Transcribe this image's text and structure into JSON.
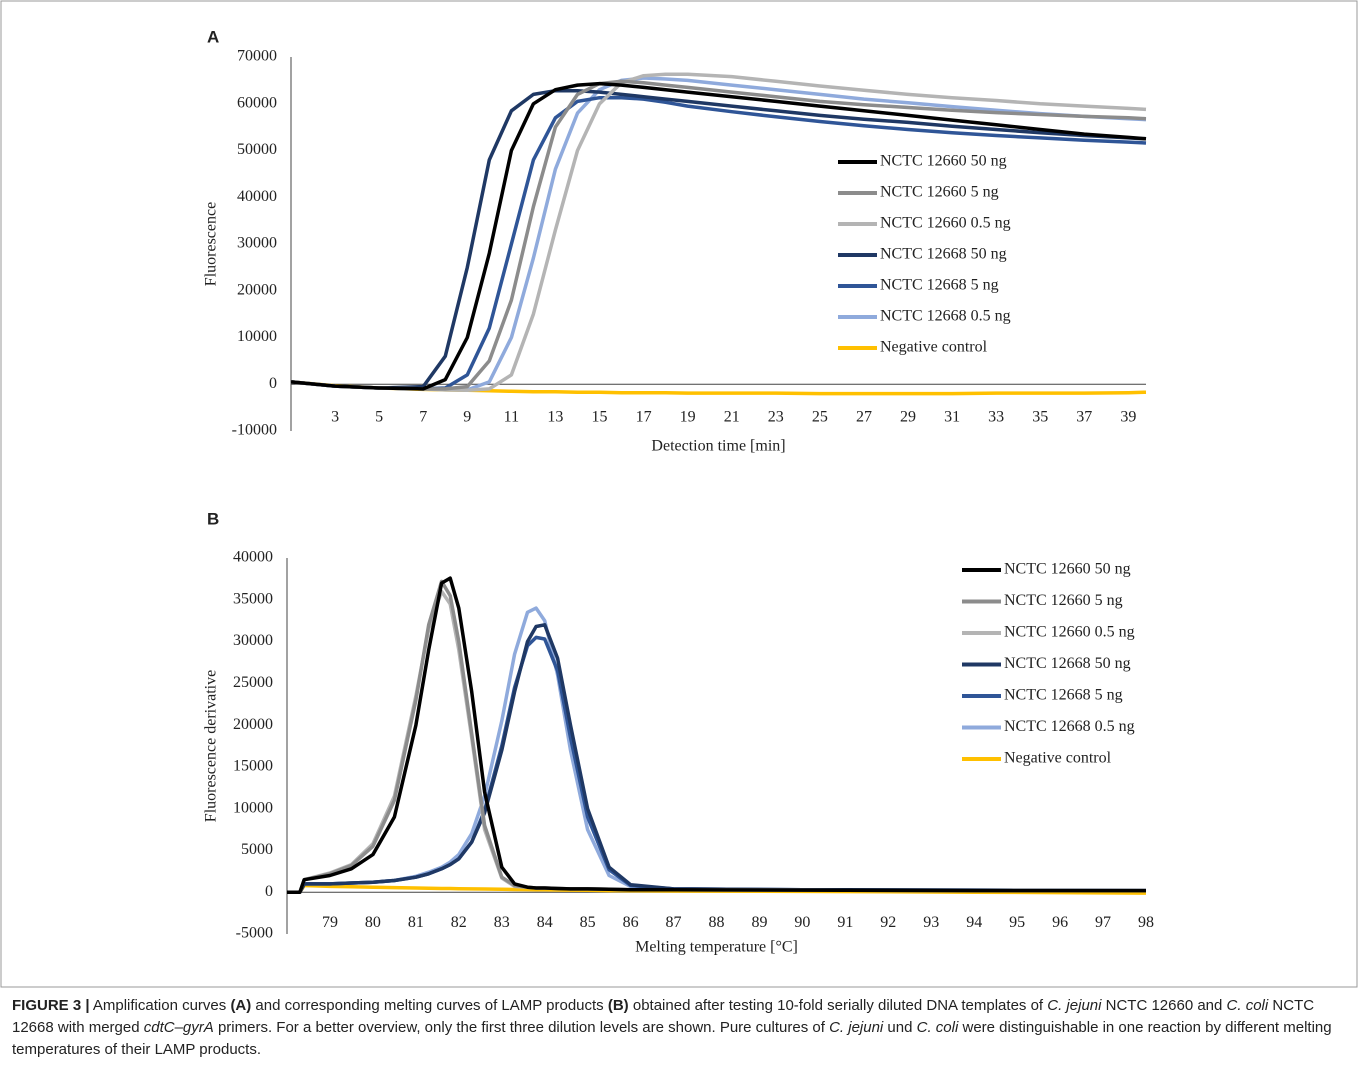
{
  "chart_data": [
    {
      "type": "line",
      "panel_label": "A",
      "x_label": "Detection time [min]",
      "y_label": "Fluorescence",
      "x": [
        1,
        3,
        5,
        7,
        8,
        9,
        10,
        11,
        12,
        13,
        14,
        15,
        16,
        17,
        18,
        19,
        21,
        23,
        25,
        27,
        29,
        31,
        33,
        35,
        37,
        39,
        39.8
      ],
      "xlim": [
        1,
        39.8
      ],
      "xticks": [
        3,
        5,
        7,
        9,
        11,
        13,
        15,
        17,
        19,
        21,
        23,
        25,
        27,
        29,
        31,
        33,
        35,
        37,
        39
      ],
      "ylim": [
        -10000,
        70000
      ],
      "yticks": [
        -10000,
        0,
        10000,
        20000,
        30000,
        40000,
        50000,
        60000,
        70000
      ],
      "series": [
        {
          "name": "NCTC 12660 50 ng",
          "color": "#000000",
          "values": [
            500,
            -400,
            -800,
            -1000,
            1000,
            10000,
            28000,
            50000,
            60000,
            63000,
            64000,
            64300,
            64000,
            63500,
            63000,
            62500,
            61500,
            60500,
            59500,
            58500,
            57500,
            56500,
            55500,
            54500,
            53500,
            52800,
            52500
          ]
        },
        {
          "name": "NCTC 12660 5 ng",
          "color": "#8c8c8c",
          "values": [
            500,
            -400,
            -800,
            -1000,
            -1000,
            -500,
            5000,
            18000,
            38000,
            55000,
            62000,
            64300,
            64800,
            64500,
            64000,
            63500,
            62500,
            61500,
            60500,
            59800,
            59200,
            58600,
            58100,
            57700,
            57300,
            57000,
            56800
          ]
        },
        {
          "name": "NCTC 12660 0.5 ng",
          "color": "#b4b4b4",
          "values": [
            500,
            -400,
            -800,
            -1000,
            -1200,
            -1300,
            -1000,
            2000,
            15000,
            33000,
            50000,
            60000,
            64500,
            66000,
            66300,
            66300,
            65800,
            64800,
            63800,
            62900,
            62000,
            61300,
            60700,
            60000,
            59500,
            59000,
            58800
          ]
        },
        {
          "name": "NCTC 12668 50 ng",
          "color": "#1f3864",
          "values": [
            500,
            -400,
            -800,
            -500,
            6000,
            25000,
            48000,
            58500,
            62000,
            62800,
            62800,
            62500,
            62000,
            61500,
            61000,
            60500,
            59500,
            58500,
            57500,
            56700,
            56000,
            55200,
            54500,
            53800,
            53200,
            52700,
            52500
          ]
        },
        {
          "name": "NCTC 12668 5 ng",
          "color": "#2f5597",
          "values": [
            500,
            -400,
            -800,
            -1000,
            -800,
            2000,
            12000,
            30000,
            48000,
            57000,
            60500,
            61300,
            61300,
            61000,
            60300,
            59500,
            58300,
            57200,
            56200,
            55300,
            54500,
            53800,
            53200,
            52700,
            52200,
            51800,
            51600
          ]
        },
        {
          "name": "NCTC 12668 0.5 ng",
          "color": "#8faadc",
          "values": [
            500,
            -400,
            -800,
            -1000,
            -1000,
            -1200,
            500,
            10000,
            27000,
            46000,
            58000,
            63000,
            65000,
            65500,
            65300,
            65000,
            64000,
            63000,
            62000,
            61000,
            60200,
            59400,
            58600,
            57900,
            57300,
            56800,
            56600
          ]
        },
        {
          "name": "Negative control",
          "color": "#ffc000",
          "values": [
            500,
            -300,
            -800,
            -1100,
            -1200,
            -1300,
            -1400,
            -1500,
            -1600,
            -1600,
            -1700,
            -1700,
            -1800,
            -1800,
            -1800,
            -1900,
            -1900,
            -1900,
            -2000,
            -2000,
            -2000,
            -2000,
            -1900,
            -1900,
            -1900,
            -1800,
            -1700
          ]
        }
      ]
    },
    {
      "type": "line",
      "panel_label": "B",
      "x_label": "Melting temperature [°C]",
      "y_label": "Fluorescence derivative",
      "x": [
        78,
        78.3,
        78.4,
        79,
        79.5,
        80,
        80.5,
        81,
        81.3,
        81.6,
        81.8,
        82,
        82.3,
        82.6,
        83,
        83.3,
        83.6,
        83.8,
        84,
        84.3,
        84.6,
        85,
        85.5,
        86,
        87,
        90,
        94,
        98
      ],
      "xlim": [
        78,
        98
      ],
      "xticks": [
        79,
        80,
        81,
        82,
        83,
        84,
        85,
        86,
        87,
        88,
        89,
        90,
        91,
        92,
        93,
        94,
        95,
        96,
        97,
        98
      ],
      "ylim": [
        -5000,
        40000
      ],
      "yticks": [
        -5000,
        0,
        5000,
        10000,
        15000,
        20000,
        25000,
        30000,
        35000,
        40000
      ],
      "series": [
        {
          "name": "NCTC 12660 50 ng",
          "color": "#000000",
          "values": [
            0,
            0,
            1500,
            2000,
            2800,
            4500,
            9000,
            20000,
            29000,
            37000,
            37600,
            34000,
            24000,
            12000,
            3000,
            1000,
            600,
            500,
            500,
            450,
            400,
            400,
            350,
            300,
            300,
            250,
            200,
            200
          ]
        },
        {
          "name": "NCTC 12660 5 ng",
          "color": "#8c8c8c",
          "values": [
            0,
            0,
            1500,
            2200,
            3200,
            5500,
            11000,
            23000,
            32000,
            37200,
            35500,
            30000,
            19000,
            8000,
            1800,
            800,
            600,
            500,
            500,
            450,
            400,
            400,
            350,
            300,
            300,
            250,
            200,
            200
          ]
        },
        {
          "name": "NCTC 12660 0.5 ng",
          "color": "#b4b4b4",
          "values": [
            0,
            0,
            1500,
            2300,
            3300,
            5800,
            11500,
            23500,
            31500,
            36000,
            34500,
            29000,
            18500,
            7500,
            1700,
            700,
            600,
            500,
            500,
            450,
            400,
            400,
            350,
            300,
            300,
            250,
            200,
            200
          ]
        },
        {
          "name": "NCTC 12668 50 ng",
          "color": "#1f3864",
          "values": [
            0,
            0,
            1000,
            1000,
            1100,
            1200,
            1400,
            1800,
            2200,
            2800,
            3300,
            4000,
            6000,
            9500,
            17000,
            24000,
            30000,
            31800,
            32000,
            28000,
            20000,
            10000,
            3000,
            900,
            400,
            300,
            250,
            200
          ]
        },
        {
          "name": "NCTC 12668 5 ng",
          "color": "#2f5597",
          "values": [
            0,
            0,
            1000,
            1000,
            1100,
            1200,
            1400,
            1800,
            2200,
            2800,
            3300,
            4000,
            6000,
            9800,
            17500,
            24500,
            29500,
            30500,
            30300,
            26500,
            18500,
            9000,
            2700,
            800,
            400,
            300,
            250,
            200
          ]
        },
        {
          "name": "NCTC 12668 0.5 ng",
          "color": "#8faadc",
          "values": [
            0,
            0,
            1000,
            1000,
            1100,
            1200,
            1400,
            1900,
            2400,
            3000,
            3600,
            4500,
            7000,
            11500,
            20500,
            28500,
            33500,
            34000,
            32500,
            26000,
            17000,
            7500,
            2000,
            700,
            400,
            300,
            250,
            200
          ]
        },
        {
          "name": "Negative control",
          "color": "#ffc000",
          "values": [
            0,
            0,
            800,
            700,
            650,
            600,
            550,
            500,
            480,
            450,
            440,
            420,
            400,
            380,
            350,
            330,
            310,
            300,
            290,
            270,
            250,
            230,
            200,
            180,
            150,
            100,
            0,
            -100
          ]
        }
      ]
    }
  ],
  "caption": [
    "FIGURE 3 |",
    " Amplification curves ",
    "(A)",
    " and corresponding melting curves of LAMP products ",
    "(B)",
    " obtained after testing 10-fold serially diluted DNA templates of ",
    "C. jejuni",
    " NCTC 12660 and ",
    "C. coli",
    " NCTC 12668 with merged ",
    "cdtC–gyrA",
    " primers. For a better overview, only the first three dilution levels are shown. Pure cultures of ",
    "C. jejuni",
    " und ",
    "C. coli",
    " were distinguishable in one reaction by different melting temperatures of their LAMP products."
  ]
}
